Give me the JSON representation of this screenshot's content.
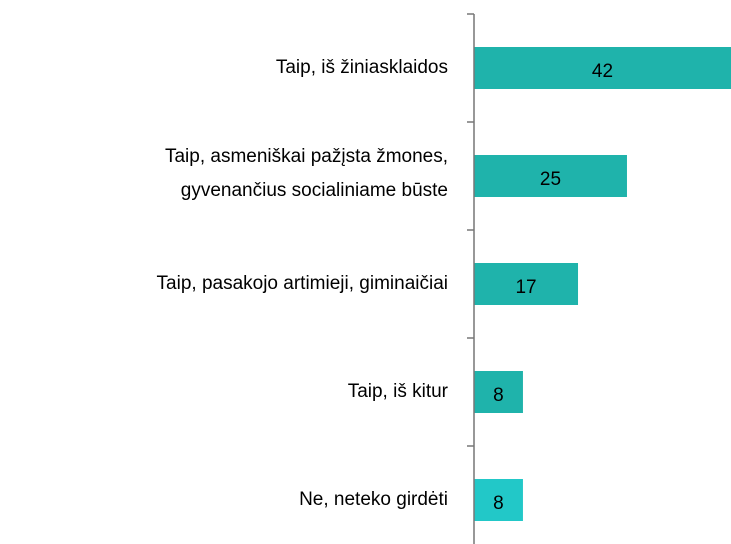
{
  "chart_data": {
    "type": "barh",
    "categories": [
      "Taip, iš žiniasklaidos",
      [
        "Taip, asmeniškai pažįsta žmones,",
        "gyvenančius socialiniame būste"
      ],
      "Taip, pasakojo artimieji, giminaičiai",
      "Taip, iš kitur",
      "Ne, neteko girdėti"
    ],
    "values": [
      42,
      25,
      17,
      8,
      8
    ],
    "colors": [
      "#1fb3ab",
      "#1fb3ab",
      "#1fb3ab",
      "#1fb3ab",
      "#22c8c8"
    ]
  }
}
